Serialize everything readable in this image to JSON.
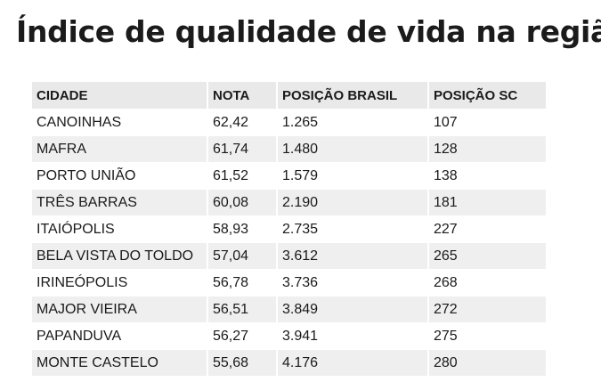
{
  "title": "Índice de qualidade de vida na região",
  "table": {
    "headers": [
      "CIDADE",
      "NOTA",
      "POSIÇÃO BRASIL",
      "POSIÇÃO SC"
    ],
    "rows": [
      [
        "CANOINHAS",
        "62,42",
        "1.265",
        "107"
      ],
      [
        "MAFRA",
        "61,74",
        "1.480",
        "128"
      ],
      [
        "PORTO UNIÃO",
        "61,52",
        "1.579",
        "138"
      ],
      [
        "TRÊS BARRAS",
        "60,08",
        "2.190",
        "181"
      ],
      [
        "ITAIÓPOLIS",
        "58,93",
        "2.735",
        "227"
      ],
      [
        "BELA VISTA DO TOLDO",
        "57,04",
        "3.612",
        "265"
      ],
      [
        "IRINEÓPOLIS",
        "56,78",
        "3.736",
        "268"
      ],
      [
        "MAJOR VIEIRA",
        "56,51",
        "3.849",
        "272"
      ],
      [
        "PAPANDUVA",
        "56,27",
        "3.941",
        "275"
      ],
      [
        "MONTE CASTELO",
        "55,68",
        "4.176",
        "280"
      ]
    ]
  }
}
